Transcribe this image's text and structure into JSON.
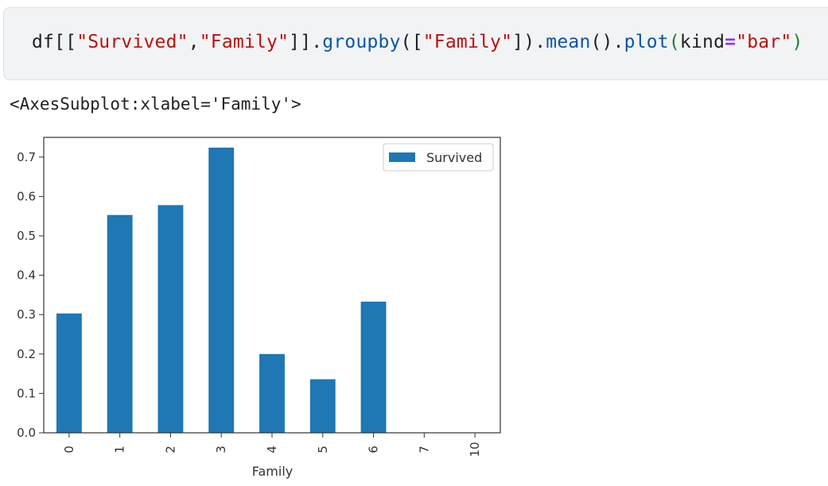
{
  "code_cell": {
    "tokens": [
      {
        "text": "df[[",
        "kind": "plain"
      },
      {
        "text": "\"Survived\"",
        "kind": "str"
      },
      {
        "text": ",",
        "kind": "plain"
      },
      {
        "text": "\"Family\"",
        "kind": "str"
      },
      {
        "text": "]].",
        "kind": "plain"
      },
      {
        "text": "groupby",
        "kind": "fn"
      },
      {
        "text": "([",
        "kind": "plain"
      },
      {
        "text": "\"Family\"",
        "kind": "str"
      },
      {
        "text": "]).",
        "kind": "plain"
      },
      {
        "text": "mean",
        "kind": "fn"
      },
      {
        "text": "().",
        "kind": "plain"
      },
      {
        "text": "plot",
        "kind": "fn"
      },
      {
        "text": "(",
        "kind": "paren-green"
      },
      {
        "text": "kind",
        "kind": "plain"
      },
      {
        "text": "=",
        "kind": "op"
      },
      {
        "text": "\"bar\"",
        "kind": "str"
      },
      {
        "text": ")",
        "kind": "paren-green"
      }
    ]
  },
  "output": {
    "text": "<AxesSubplot:xlabel='Family'>"
  },
  "chart_data": {
    "type": "bar",
    "categories": [
      "0",
      "1",
      "2",
      "3",
      "4",
      "5",
      "6",
      "7",
      "10"
    ],
    "series": [
      {
        "name": "Survived",
        "values": [
          0.303,
          0.553,
          0.578,
          0.724,
          0.2,
          0.136,
          0.333,
          0.0,
          0.0
        ]
      }
    ],
    "xlabel": "Family",
    "ylabel": "",
    "ylim": [
      0,
      0.75
    ],
    "yticks": [
      "0.0",
      "0.1",
      "0.2",
      "0.3",
      "0.4",
      "0.5",
      "0.6",
      "0.7"
    ],
    "legend_position": "top-right",
    "bar_color": "#1f77b4",
    "grid": false
  }
}
